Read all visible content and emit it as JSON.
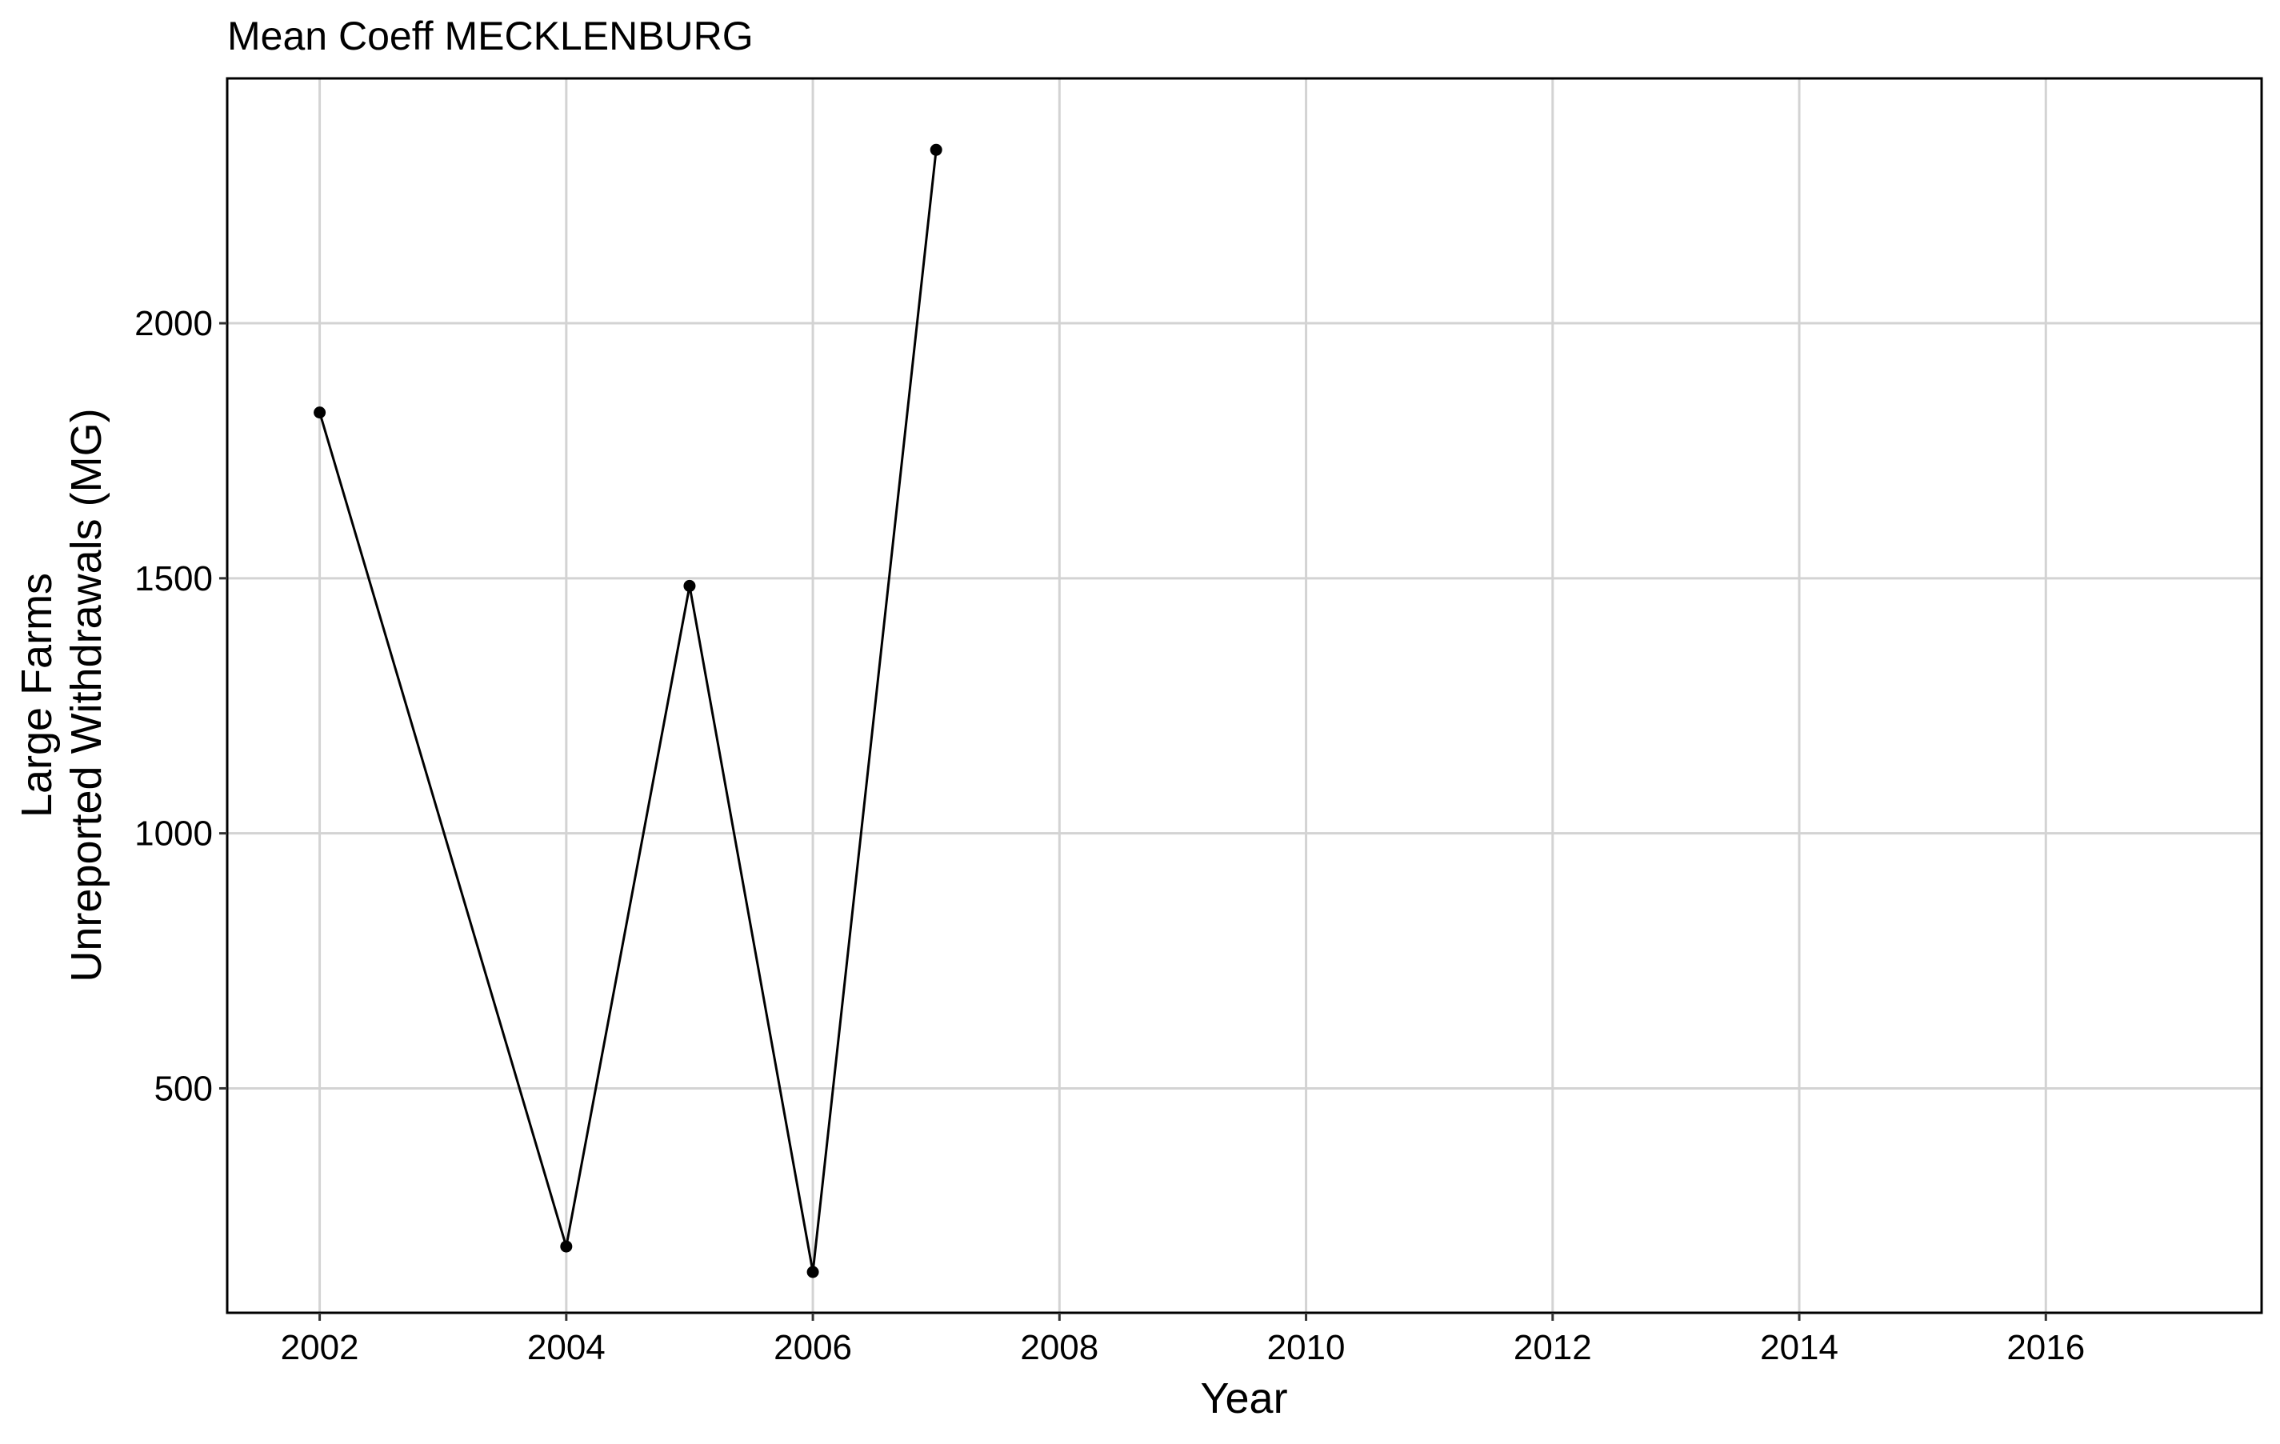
{
  "chart_data": {
    "type": "line",
    "title": "Mean Coeff MECKLENBURG",
    "xlabel": "Year",
    "ylabel_lines": [
      "Large Farms",
      "Unreported Withdrawals (MG)"
    ],
    "xlim": [
      2001.25,
      2017.75
    ],
    "ylim": [
      60,
      2480
    ],
    "x_ticks": [
      2002,
      2004,
      2006,
      2008,
      2010,
      2012,
      2014,
      2016
    ],
    "y_ticks": [
      500,
      1000,
      1500,
      2000
    ],
    "grid": true,
    "legend": "none",
    "series": [
      {
        "x": [
          2002,
          2004,
          2005,
          2006,
          2007
        ],
        "y": [
          1825,
          190,
          1485,
          140,
          2340
        ]
      }
    ],
    "colors": {
      "line": "#000000",
      "point": "#000000",
      "grid": "#d3d3d3",
      "panel_border": "#000000",
      "background": "#ffffff"
    }
  }
}
